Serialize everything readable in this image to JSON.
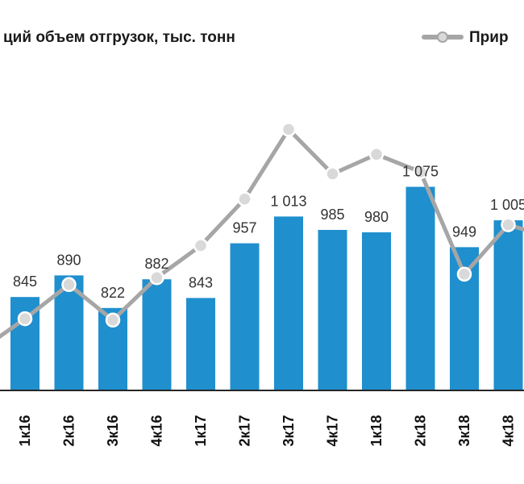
{
  "chart_data": {
    "type": "bar",
    "categories": [
      "1к16",
      "2к16",
      "3к16",
      "4к16",
      "1к17",
      "2к17",
      "3к17",
      "4к17",
      "1к18",
      "2к18",
      "3к18",
      "4к18"
    ],
    "series": [
      {
        "name": "ций объем отгрузок, тыс. тонн",
        "type": "bar",
        "values": [
          845,
          890,
          822,
          882,
          843,
          957,
          1013,
          985,
          980,
          1075,
          949,
          1005
        ],
        "value_labels": [
          "845",
          "890",
          "822",
          "882",
          "843",
          "957",
          "1 013",
          "985",
          "980",
          "1 075",
          "949",
          "1 005"
        ],
        "color": "#1f8fce"
      },
      {
        "name": "Прир",
        "type": "line",
        "points": [
          {
            "category": "1к16",
            "value": 1.03
          },
          {
            "category": "2к16",
            "value": 1.52
          },
          {
            "category": "3к16",
            "value": 1.01
          },
          {
            "category": "4к16",
            "value": 1.62
          },
          {
            "category": "1к17",
            "value": 2.08
          },
          {
            "category": "2к17",
            "value": 2.75
          },
          {
            "category": "3к17",
            "value": 3.75
          },
          {
            "category": "4к17",
            "value": 3.11
          },
          {
            "category": "1к18",
            "value": 3.39
          },
          {
            "category": "2к18",
            "value": 3.14
          },
          {
            "category": "3к18",
            "value": 1.67
          },
          {
            "category": "4к18",
            "value": 2.38
          }
        ],
        "leading_value": 0.58,
        "trailing_value": 2.19,
        "color": "#a6a6a6"
      }
    ],
    "ylim": [
      650,
      1150
    ],
    "ylim_line": [
      0.0,
      4.2
    ],
    "legend_position": "top"
  }
}
